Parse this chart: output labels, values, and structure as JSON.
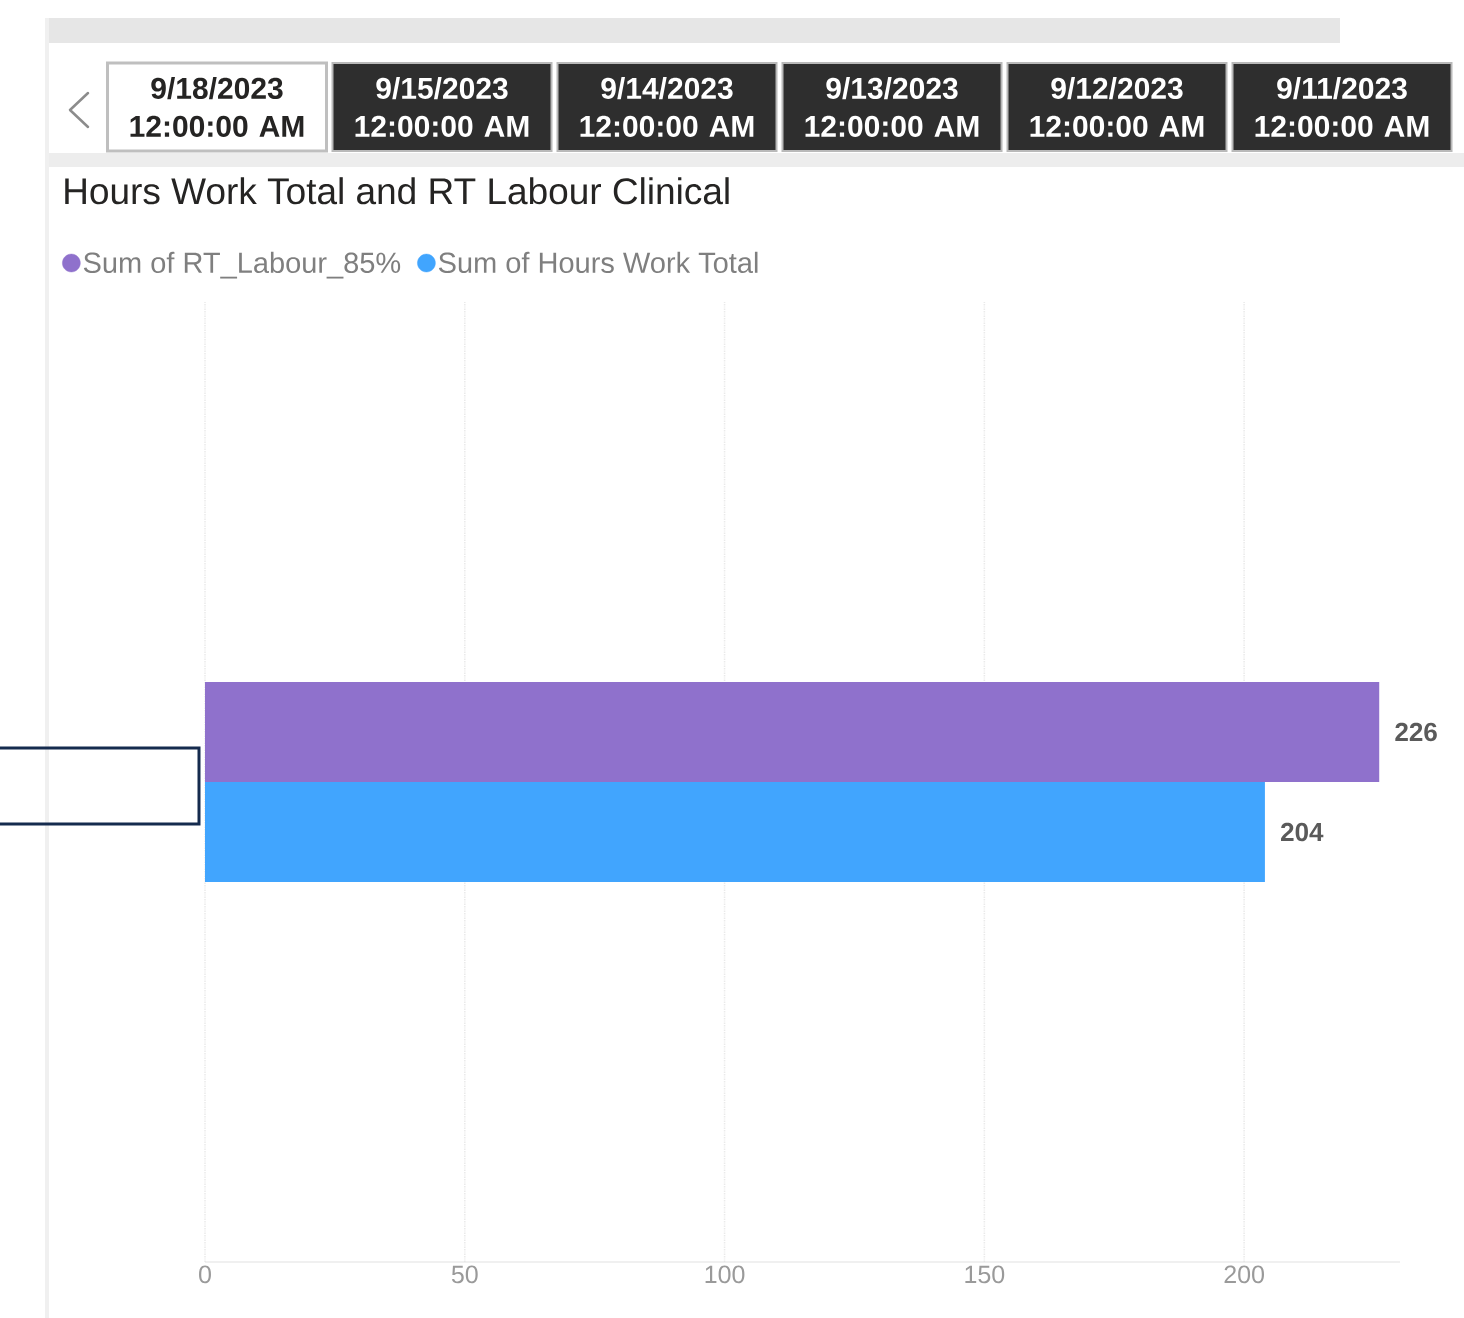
{
  "chart_data": {
    "type": "bar",
    "orientation": "horizontal",
    "title": "Hours Work Total and RT Labour Clinical",
    "annotations": [
      "9/18/2023 12:00:00 AM",
      "9/15/2023 12:00:00 AM",
      "9/14/2023 12:00:00 AM",
      "9/13/2023 12:00:00 AM",
      "9/12/2023 12:00:00 AM",
      "9/11/2023 12:00:00 AM"
    ],
    "categories": [
      null
    ],
    "series": [
      {
        "name": "Sum of RT_Labour_85%",
        "color": "#8f71cc",
        "values": [
          226
        ]
      },
      {
        "name": "Sum of Hours Work Total",
        "color": "#41a5fe",
        "values": [
          204
        ]
      }
    ],
    "xlim": [
      0,
      230
    ],
    "xticks": [
      0,
      50,
      100,
      150,
      200
    ],
    "grid": "x",
    "legend": "top left",
    "data_labels": true
  }
}
